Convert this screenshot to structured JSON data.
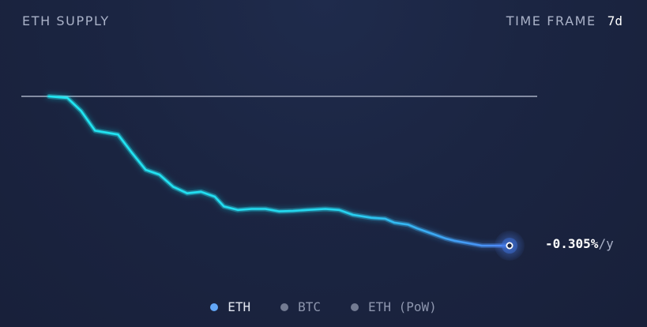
{
  "header": {
    "title": "ETH SUPPLY",
    "timeframe_label": "TIME FRAME",
    "timeframe_value": "7d"
  },
  "readout": {
    "value": "-0.305%",
    "unit": "/y"
  },
  "legend": [
    {
      "label": "ETH",
      "color": "#62a6f6",
      "active": true
    },
    {
      "label": "BTC",
      "color": "#737b92",
      "active": false
    },
    {
      "label": "ETH (PoW)",
      "color": "#737b92",
      "active": false
    }
  ],
  "colors": {
    "line_start": "#20e7f2",
    "line_end": "#4f86f7",
    "baseline": "#a8afc4"
  },
  "chart_data": {
    "type": "line",
    "series": [
      {
        "name": "ETH",
        "x": [
          0,
          0.04,
          0.07,
          0.1,
          0.15,
          0.18,
          0.21,
          0.24,
          0.27,
          0.3,
          0.33,
          0.36,
          0.38,
          0.41,
          0.44,
          0.47,
          0.5,
          0.53,
          0.56,
          0.6,
          0.63,
          0.66,
          0.7,
          0.73,
          0.75,
          0.78,
          0.8,
          0.83,
          0.86,
          0.88,
          0.91,
          0.94,
          0.97,
          1
        ],
        "y": [
          0,
          -0.003,
          -0.03,
          -0.07,
          -0.078,
          -0.115,
          -0.15,
          -0.16,
          -0.185,
          -0.198,
          -0.195,
          -0.205,
          -0.225,
          -0.232,
          -0.23,
          -0.23,
          -0.235,
          -0.234,
          -0.232,
          -0.23,
          -0.232,
          -0.242,
          -0.248,
          -0.25,
          -0.258,
          -0.262,
          -0.27,
          -0.28,
          -0.29,
          -0.295,
          -0.3,
          -0.305,
          -0.305,
          -0.305
        ]
      }
    ],
    "baseline": 0,
    "ylim": [
      -0.305,
      0
    ],
    "legend_position": "bottom-center"
  }
}
